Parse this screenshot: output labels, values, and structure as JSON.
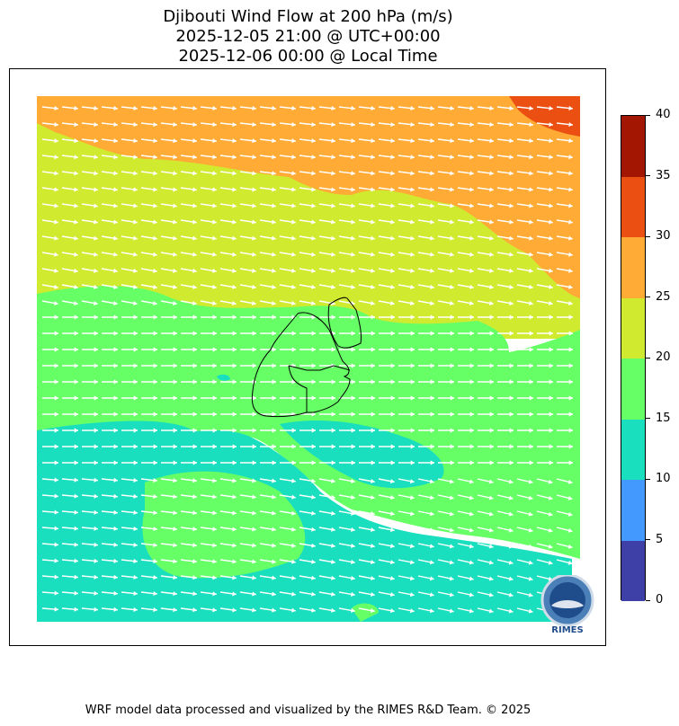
{
  "title": {
    "line1": "Djibouti Wind Flow at 200 hPa (m/s)",
    "line2": "2025-12-05 21:00 @ UTC+00:00",
    "line3": "2025-12-06 00:00 @ Local Time"
  },
  "colorbar": {
    "levels": [
      0,
      5,
      10,
      15,
      20,
      25,
      30,
      35,
      40
    ],
    "colors": [
      "#3f3fa8",
      "#4499ff",
      "#1adfbf",
      "#66ff66",
      "#d0ea30",
      "#ffab35",
      "#ec4f12",
      "#a21602"
    ],
    "labels": [
      "0",
      "5",
      "10",
      "15",
      "20",
      "25",
      "30",
      "35",
      "40"
    ]
  },
  "logo": {
    "text": "RIMES",
    "icon": "rimes-globe-logo"
  },
  "footer": "WRF model data processed and visualized by the RIMES R&D Team. © 2025"
}
